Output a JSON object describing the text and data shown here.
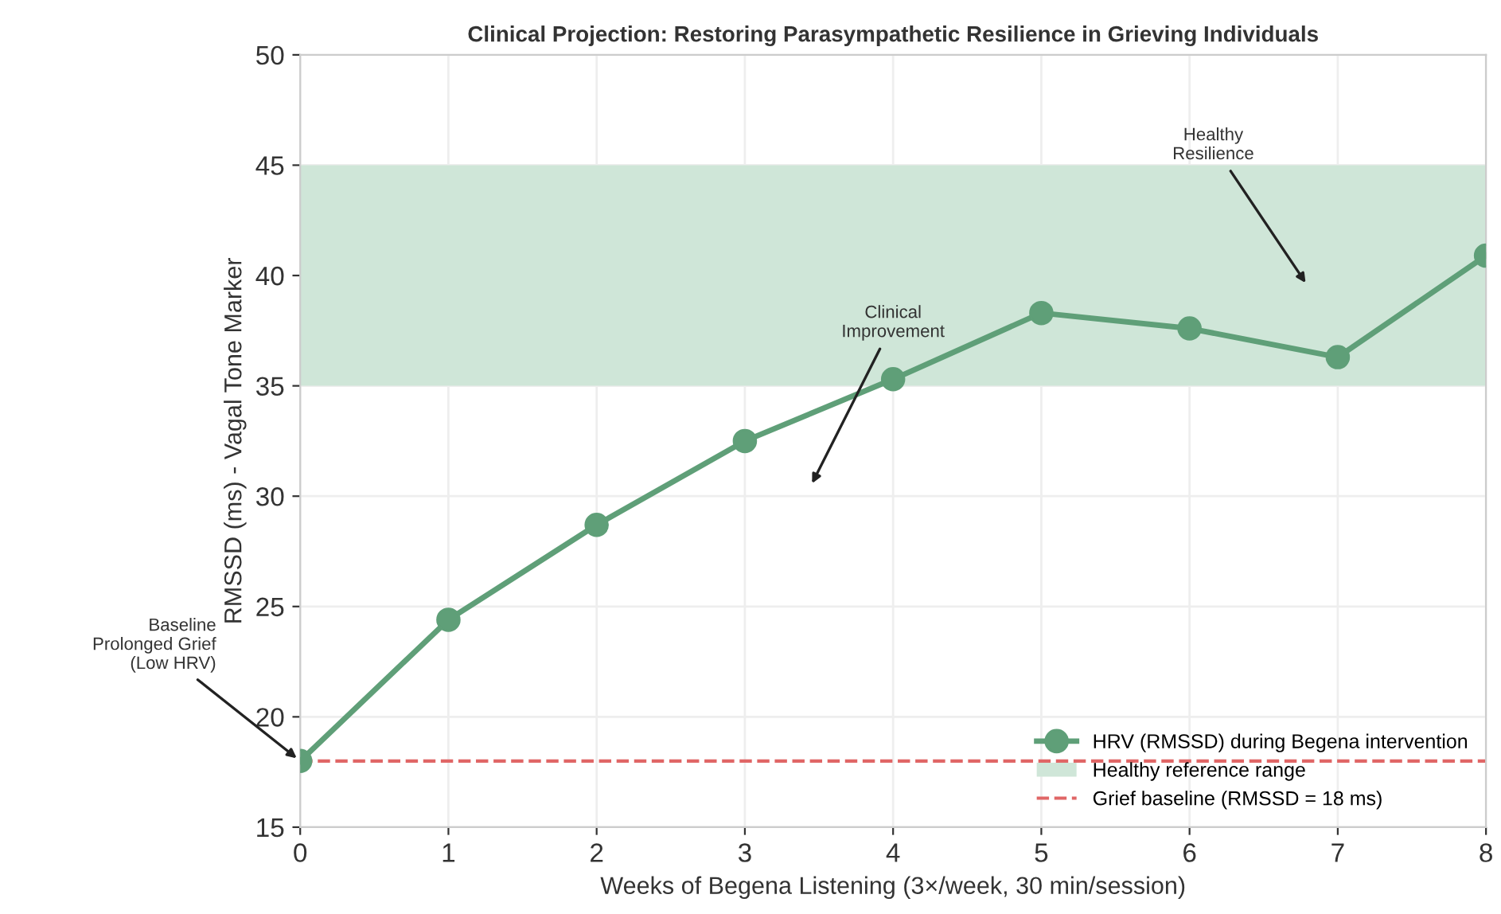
{
  "chart_data": {
    "type": "line",
    "title": "Clinical Projection: Restoring Parasympathetic Resilience in Grieving Individuals",
    "xlabel": "Weeks of Begena Listening (3×/week, 30 min/session)",
    "ylabel": "RMSSD (ms) - Vagal Tone Marker",
    "x": [
      0,
      1,
      2,
      3,
      4,
      5,
      6,
      7,
      8
    ],
    "series": [
      {
        "name": "HRV (RMSSD) during Begena intervention",
        "color": "#5f9f78",
        "values": [
          18,
          24.4,
          28.7,
          32.5,
          35.3,
          38.3,
          37.6,
          36.3,
          40.9
        ]
      }
    ],
    "xlim": [
      0,
      8
    ],
    "xticks": [
      0,
      1,
      2,
      3,
      4,
      5,
      6,
      7,
      8
    ],
    "ylim": [
      15,
      50
    ],
    "yticks": [
      15,
      20,
      25,
      30,
      35,
      40,
      45,
      50
    ],
    "bands": [
      {
        "axis": "y",
        "from": 35,
        "to": 45,
        "label": "Healthy reference range",
        "color": "#cfe6d8"
      }
    ],
    "ref_lines": [
      {
        "axis": "y",
        "value": 18,
        "label": "Grief baseline (RMSSD = 18 ms)",
        "color": "#e06666",
        "line_style": "dashed"
      }
    ],
    "annotations": [
      {
        "text": "Baseline\nProlonged Grief\n(Low HRV)",
        "x": 0,
        "y": 18
      },
      "Clinical\nImprovement",
      "Healthy\nResilience"
    ],
    "grid": true,
    "legend": "bottom right",
    "marker": "circle",
    "line_style": "solid"
  }
}
